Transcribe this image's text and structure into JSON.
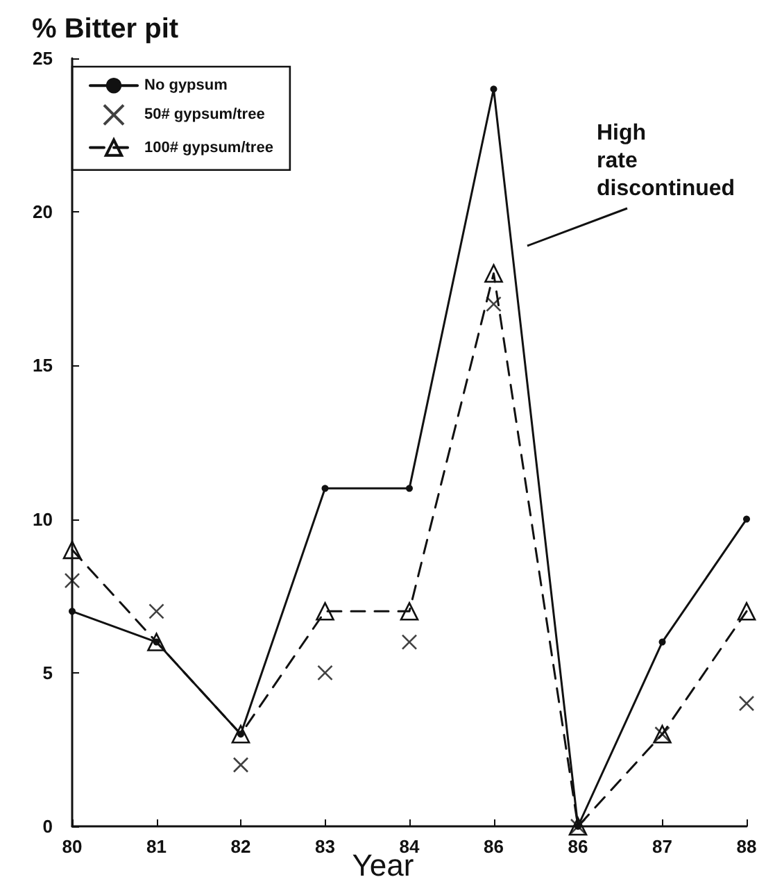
{
  "chart_data": {
    "type": "line",
    "title": "% Bitter pit",
    "xlabel": "Year",
    "categories": [
      "80",
      "81",
      "82",
      "83",
      "84",
      "86",
      "86",
      "87",
      "88"
    ],
    "series": [
      {
        "name": "No gypsum",
        "color": "#111111",
        "marker": "circle",
        "line_style": "solid",
        "values": [
          7,
          6,
          3,
          11,
          11,
          24,
          0,
          6,
          10
        ]
      },
      {
        "name": "50# gypsum/tree",
        "color": "#111111",
        "type": "scatter",
        "marker": "cross",
        "values": [
          8,
          7,
          2,
          5,
          6,
          17,
          0,
          3,
          4
        ]
      },
      {
        "name": "100# gypsum/tree",
        "color": "#111111",
        "marker": "triangle",
        "line_style": "dashed",
        "values": [
          9,
          6,
          3,
          7,
          7,
          18,
          0,
          3,
          7
        ]
      }
    ],
    "ylim": [
      0,
      25
    ],
    "yticks": [
      0,
      5,
      10,
      15,
      20,
      25
    ],
    "grid": false,
    "legend": "top left",
    "annotations": [
      "High rate discontinued"
    ]
  }
}
